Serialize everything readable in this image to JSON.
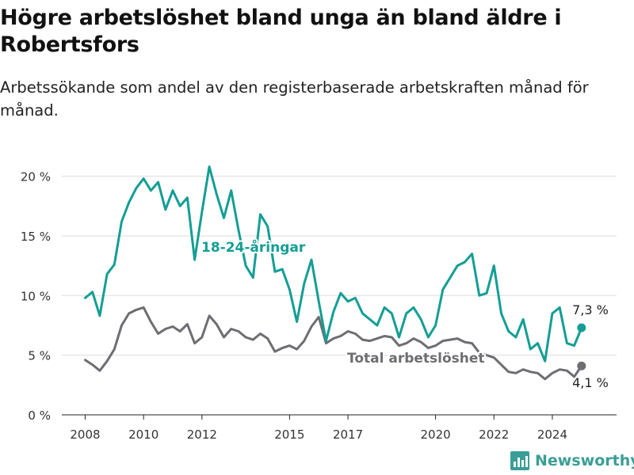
{
  "title": "Högre arbetslöshet bland unga än bland äldre i Robertsfors",
  "subtitle": "Arbetssökande som andel av den registerbaserade arbetskraften månad för månad.",
  "brand": "Newsworthy",
  "colors": {
    "young": "#139e94",
    "total": "#6d6d72",
    "grid": "#dddddd",
    "axis": "#222222"
  },
  "chart_data": {
    "type": "line",
    "x_tick_labels": [
      "2008",
      "2010",
      "2012",
      "2015",
      "2017",
      "2020",
      "2022",
      "2024"
    ],
    "y_tick_labels": [
      "0 %",
      "5 %",
      "10 %",
      "15 %",
      "20 %"
    ],
    "y_ticks": [
      0,
      5,
      10,
      15,
      20
    ],
    "xlim": [
      2007.2,
      2026.2
    ],
    "ylim": [
      0,
      21.5
    ],
    "grid": true,
    "series": [
      {
        "name": "18-24-åringar",
        "label": "18-24-åringar",
        "end_label": "7,3 %",
        "x": [
          2008.0,
          2008.25,
          2008.5,
          2008.75,
          2009.0,
          2009.25,
          2009.5,
          2009.75,
          2010.0,
          2010.25,
          2010.5,
          2010.75,
          2011.0,
          2011.25,
          2011.5,
          2011.75,
          2012.0,
          2012.25,
          2012.5,
          2012.75,
          2013.0,
          2013.25,
          2013.5,
          2013.75,
          2014.0,
          2014.25,
          2014.5,
          2014.75,
          2015.0,
          2015.25,
          2015.5,
          2015.75,
          2016.0,
          2016.25,
          2016.5,
          2016.75,
          2017.0,
          2017.25,
          2017.5,
          2017.75,
          2018.0,
          2018.25,
          2018.5,
          2018.75,
          2019.0,
          2019.25,
          2019.5,
          2019.75,
          2020.0,
          2020.25,
          2020.5,
          2020.75,
          2021.0,
          2021.25,
          2021.5,
          2021.75,
          2022.0,
          2022.25,
          2022.5,
          2022.75,
          2023.0,
          2023.25,
          2023.5,
          2023.75,
          2024.0,
          2024.25,
          2024.5,
          2024.75,
          2025.0
        ],
        "y": [
          9.8,
          10.3,
          8.3,
          11.8,
          12.6,
          16.2,
          17.8,
          19.0,
          19.8,
          18.8,
          19.5,
          17.2,
          18.8,
          17.5,
          18.2,
          13.0,
          17.0,
          20.8,
          18.5,
          16.5,
          18.8,
          15.5,
          12.5,
          11.5,
          16.8,
          15.8,
          12.0,
          12.2,
          10.5,
          7.8,
          11.0,
          13.0,
          9.5,
          6.2,
          8.6,
          10.2,
          9.5,
          9.8,
          8.5,
          8.0,
          7.5,
          9.0,
          8.5,
          6.5,
          8.5,
          9.0,
          8.0,
          6.5,
          7.5,
          10.5,
          11.5,
          12.5,
          12.8,
          13.5,
          10.0,
          10.2,
          12.5,
          8.5,
          7.0,
          6.5,
          8.0,
          5.5,
          6.0,
          4.5,
          8.5,
          9.0,
          6.0,
          5.8,
          7.3
        ]
      },
      {
        "name": "Total arbetslöshet",
        "label": "Total arbetslöshet",
        "end_label": "4,1 %",
        "x": [
          2008.0,
          2008.25,
          2008.5,
          2008.75,
          2009.0,
          2009.25,
          2009.5,
          2009.75,
          2010.0,
          2010.25,
          2010.5,
          2010.75,
          2011.0,
          2011.25,
          2011.5,
          2011.75,
          2012.0,
          2012.25,
          2012.5,
          2012.75,
          2013.0,
          2013.25,
          2013.5,
          2013.75,
          2014.0,
          2014.25,
          2014.5,
          2014.75,
          2015.0,
          2015.25,
          2015.5,
          2015.75,
          2016.0,
          2016.25,
          2016.5,
          2016.75,
          2017.0,
          2017.25,
          2017.5,
          2017.75,
          2018.0,
          2018.25,
          2018.5,
          2018.75,
          2019.0,
          2019.25,
          2019.5,
          2019.75,
          2020.0,
          2020.25,
          2020.5,
          2020.75,
          2021.0,
          2021.25,
          2021.5,
          2021.75,
          2022.0,
          2022.25,
          2022.5,
          2022.75,
          2023.0,
          2023.25,
          2023.5,
          2023.75,
          2024.0,
          2024.25,
          2024.5,
          2024.75,
          2025.0
        ],
        "y": [
          4.6,
          4.2,
          3.7,
          4.5,
          5.5,
          7.5,
          8.5,
          8.8,
          9.0,
          7.8,
          6.8,
          7.2,
          7.4,
          7.0,
          7.6,
          6.0,
          6.5,
          8.3,
          7.6,
          6.5,
          7.2,
          7.0,
          6.5,
          6.3,
          6.8,
          6.4,
          5.3,
          5.6,
          5.8,
          5.5,
          6.2,
          7.4,
          8.2,
          6.0,
          6.4,
          6.6,
          7.0,
          6.8,
          6.3,
          6.2,
          6.4,
          6.6,
          6.5,
          5.8,
          6.0,
          6.4,
          6.1,
          5.6,
          5.8,
          6.2,
          6.3,
          6.4,
          6.1,
          6.0,
          5.2,
          5.0,
          4.8,
          4.2,
          3.6,
          3.5,
          3.8,
          3.6,
          3.5,
          3.0,
          3.5,
          3.8,
          3.7,
          3.2,
          4.1
        ]
      }
    ]
  }
}
